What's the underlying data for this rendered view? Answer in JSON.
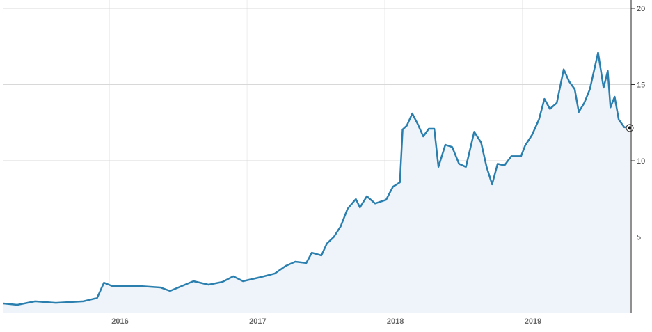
{
  "chart_data": {
    "type": "area",
    "x": [
      2015.23,
      2015.33,
      2015.46,
      2015.61,
      2015.81,
      2015.91,
      2015.96,
      2016.02,
      2016.22,
      2016.37,
      2016.44,
      2016.61,
      2016.72,
      2016.82,
      2016.9,
      2016.97,
      2017.1,
      2017.2,
      2017.28,
      2017.35,
      2017.43,
      2017.47,
      2017.54,
      2017.58,
      2017.63,
      2017.68,
      2017.73,
      2017.79,
      2017.82,
      2017.87,
      2017.93,
      2018.01,
      2018.06,
      2018.11,
      2018.13,
      2018.16,
      2018.2,
      2018.24,
      2018.28,
      2018.32,
      2018.36,
      2018.39,
      2018.44,
      2018.49,
      2018.54,
      2018.59,
      2018.65,
      2018.7,
      2018.74,
      2018.78,
      2018.82,
      2018.87,
      2018.92,
      2018.99,
      2019.02,
      2019.07,
      2019.12,
      2019.16,
      2019.2,
      2019.25,
      2019.3,
      2019.34,
      2019.38,
      2019.41,
      2019.45,
      2019.49,
      2019.55,
      2019.59,
      2019.62,
      2019.64,
      2019.67,
      2019.7,
      2019.74,
      2019.78
    ],
    "values": [
      0.64,
      0.55,
      0.78,
      0.68,
      0.78,
      1.0,
      2.0,
      1.78,
      1.78,
      1.69,
      1.46,
      2.1,
      1.87,
      2.05,
      2.42,
      2.1,
      2.37,
      2.6,
      3.1,
      3.38,
      3.29,
      3.97,
      3.79,
      4.57,
      5.0,
      5.7,
      6.85,
      7.49,
      6.94,
      7.67,
      7.2,
      7.44,
      8.3,
      8.58,
      12.05,
      12.3,
      13.1,
      12.4,
      11.6,
      12.1,
      12.1,
      9.6,
      11.05,
      10.9,
      9.8,
      9.6,
      11.9,
      11.2,
      9.6,
      8.45,
      9.8,
      9.7,
      10.3,
      10.3,
      11.0,
      11.7,
      12.7,
      14.06,
      13.4,
      13.8,
      16.0,
      15.2,
      14.7,
      13.2,
      13.8,
      14.7,
      17.1,
      14.8,
      15.9,
      13.5,
      14.2,
      12.7,
      12.2,
      12.15
    ],
    "color": "#2a7fae",
    "xlim": [
      2015.23,
      2019.79
    ],
    "xticks": [
      2016,
      2017,
      2018,
      2019
    ],
    "ylim": [
      0,
      20
    ],
    "yticks": [
      5,
      10,
      15,
      20
    ],
    "grid": true
  }
}
